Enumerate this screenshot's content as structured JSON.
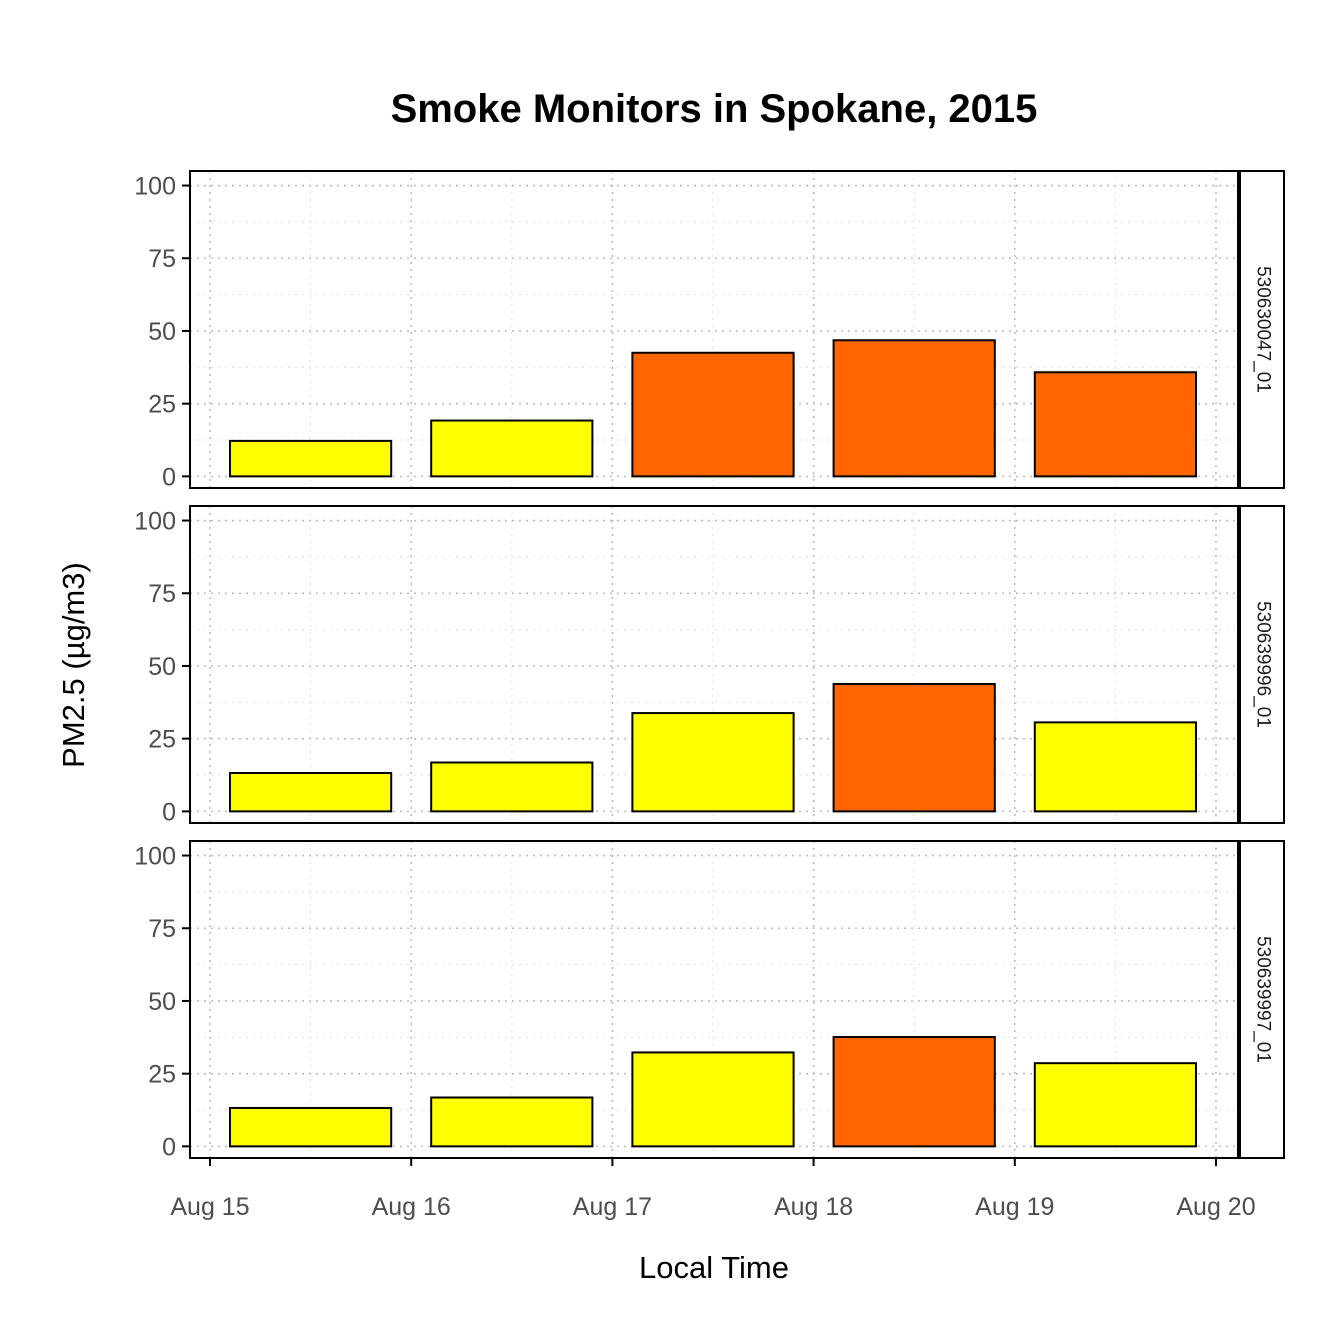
{
  "chart_data": {
    "type": "bar",
    "title": "Smoke Monitors in Spokane, 2015",
    "xlabel": "Local Time",
    "ylabel": "PM2.5 (µg/m3)",
    "x_ticks": [
      "Aug 15",
      "Aug 16",
      "Aug 17",
      "Aug 18",
      "Aug 19",
      "Aug 20"
    ],
    "categories": [
      "Aug 15",
      "Aug 16",
      "Aug 17",
      "Aug 18",
      "Aug 19"
    ],
    "y_ticks": [
      0,
      25,
      50,
      75,
      100
    ],
    "ylim": [
      -4,
      105
    ],
    "grid": true,
    "colors": {
      "yellow": "#ffff00",
      "orange": "#ff6600"
    },
    "panels": [
      {
        "name": "530630047_01",
        "values": [
          12.2,
          19.2,
          42.5,
          46.8,
          35.8
        ],
        "colors": [
          "#ffff00",
          "#ffff00",
          "#ff6600",
          "#ff6600",
          "#ff6600"
        ]
      },
      {
        "name": "530639996_01",
        "values": [
          13.2,
          16.8,
          33.8,
          43.8,
          30.6
        ],
        "colors": [
          "#ffff00",
          "#ffff00",
          "#ffff00",
          "#ff6600",
          "#ffff00"
        ]
      },
      {
        "name": "530639997_01",
        "values": [
          13.2,
          16.8,
          32.3,
          37.6,
          28.6
        ],
        "colors": [
          "#ffff00",
          "#ffff00",
          "#ffff00",
          "#ff6600",
          "#ffff00"
        ]
      }
    ]
  }
}
